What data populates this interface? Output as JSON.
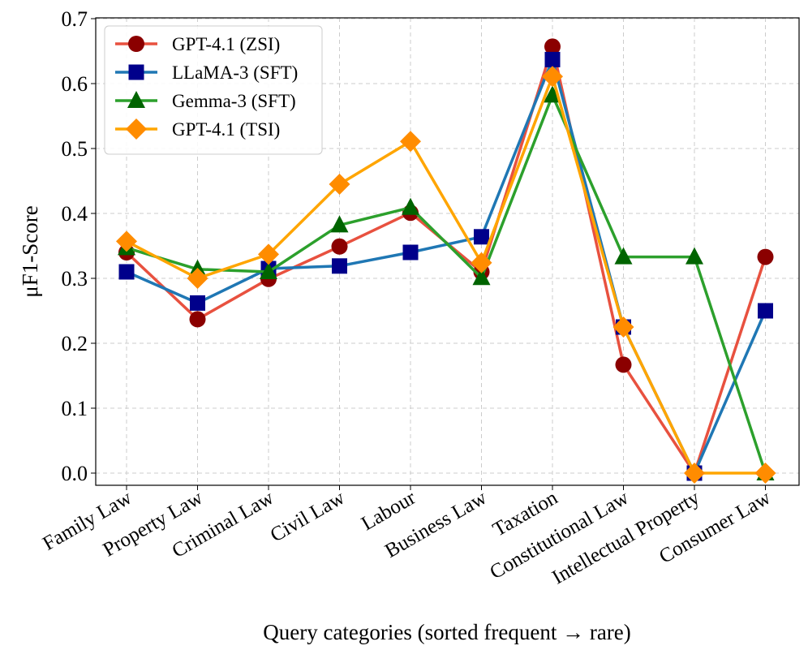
{
  "chart_data": {
    "type": "line",
    "title": "",
    "xlabel": "Query categories (sorted frequent → rare)",
    "ylabel": "μF1-Score",
    "ylim": [
      0.0,
      0.7
    ],
    "yticks": [
      "0.0",
      "0.1",
      "0.2",
      "0.3",
      "0.4",
      "0.5",
      "0.6",
      "0.7"
    ],
    "grid": true,
    "legend_position": "top-left",
    "categories": [
      "Family Law",
      "Property Law",
      "Criminal Law",
      "Civil Law",
      "Labour",
      "Business Law",
      "Taxation",
      "Constitutional Law",
      "Intellectual Property",
      "Consumer Law"
    ],
    "series": [
      {
        "name": "GPT-4.1 (ZSI)",
        "line_color": "#e8513f",
        "marker_color": "#8b0000",
        "marker": "circle",
        "values": [
          0.34,
          0.237,
          0.299,
          0.349,
          0.401,
          0.31,
          0.657,
          0.167,
          0.0,
          0.333
        ]
      },
      {
        "name": "LLaMA-3 (SFT)",
        "line_color": "#1f77b4",
        "marker_color": "#00008b",
        "marker": "square",
        "values": [
          0.31,
          0.262,
          0.315,
          0.319,
          0.34,
          0.364,
          0.637,
          0.225,
          0.0,
          0.25
        ]
      },
      {
        "name": "Gemma-3 (SFT)",
        "line_color": "#2ca02c",
        "marker_color": "#006400",
        "marker": "triangle",
        "values": [
          0.347,
          0.314,
          0.31,
          0.382,
          0.409,
          0.301,
          0.582,
          0.333,
          0.333,
          0.0
        ]
      },
      {
        "name": "GPT-4.1 (TSI)",
        "line_color": "#ffa500",
        "marker_color": "#ff8c00",
        "marker": "diamond",
        "values": [
          0.357,
          0.3,
          0.337,
          0.445,
          0.511,
          0.324,
          0.611,
          0.225,
          0.0,
          0.0
        ]
      }
    ]
  }
}
